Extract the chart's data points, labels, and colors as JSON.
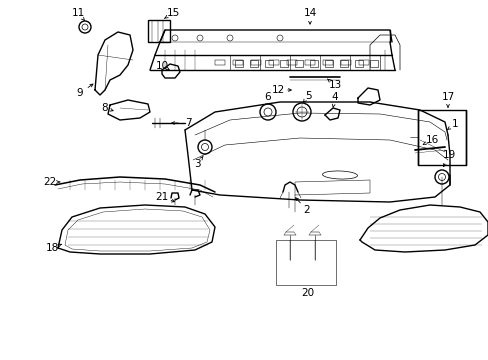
{
  "background_color": "#ffffff",
  "line_color": "#000000",
  "text_color": "#000000",
  "figsize": [
    4.89,
    3.6
  ],
  "dpi": 100
}
